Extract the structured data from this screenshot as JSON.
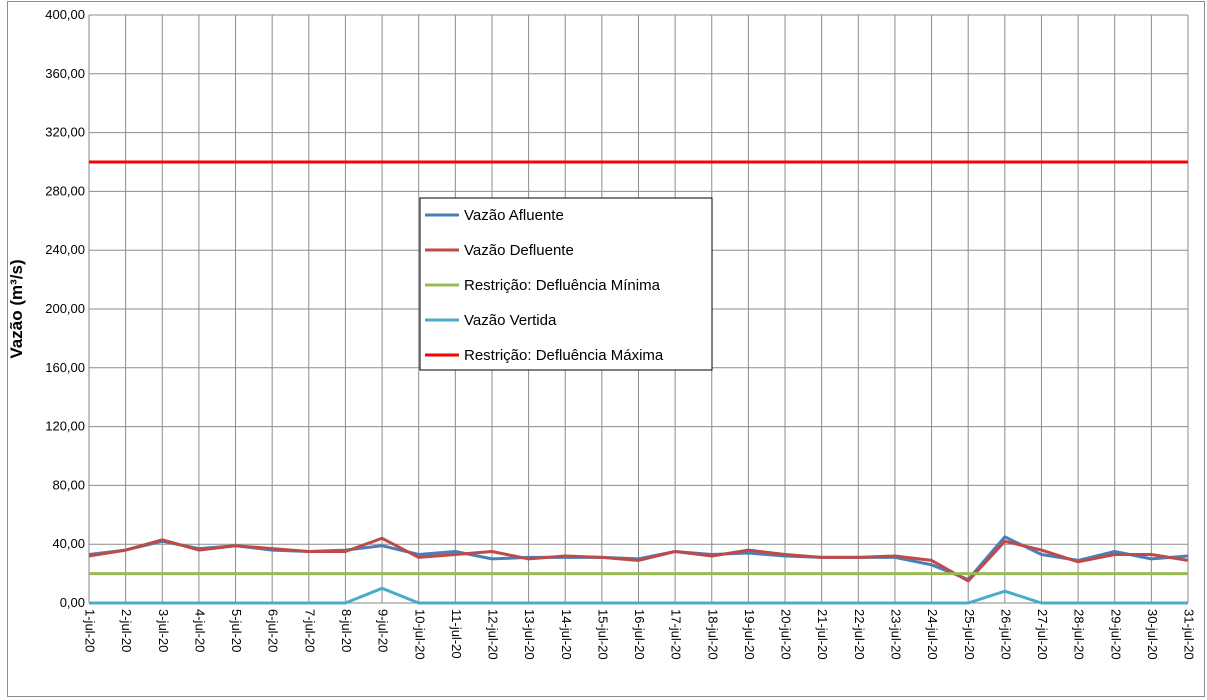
{
  "chart_data": {
    "type": "line",
    "ylabel": "Vazão (m³/s)",
    "ylim": [
      0,
      400
    ],
    "y_ticks": [
      "0,00",
      "40,00",
      "80,00",
      "120,00",
      "160,00",
      "200,00",
      "240,00",
      "280,00",
      "320,00",
      "360,00",
      "400,00"
    ],
    "grid": true,
    "legend_position": "center",
    "categories": [
      "1-jul-20",
      "2-jul-20",
      "3-jul-20",
      "4-jul-20",
      "5-jul-20",
      "6-jul-20",
      "7-jul-20",
      "8-jul-20",
      "9-jul-20",
      "10-jul-20",
      "11-jul-20",
      "12-jul-20",
      "13-jul-20",
      "14-jul-20",
      "15-jul-20",
      "16-jul-20",
      "17-jul-20",
      "18-jul-20",
      "19-jul-20",
      "20-jul-20",
      "21-jul-20",
      "22-jul-20",
      "23-jul-20",
      "24-jul-20",
      "25-jul-20",
      "26-jul-20",
      "27-jul-20",
      "28-jul-20",
      "29-jul-20",
      "30-jul-20",
      "31-jul-20"
    ],
    "series": [
      {
        "name": "Vazão Afluente",
        "color": "#4a7ebb",
        "values": [
          33,
          36,
          42,
          37,
          39,
          36,
          35,
          36,
          39,
          33,
          35,
          30,
          31,
          31,
          31,
          30,
          35,
          33,
          34,
          32,
          31,
          31,
          31,
          26,
          16,
          45,
          33,
          29,
          35,
          30,
          32
        ]
      },
      {
        "name": "Vazão Defluente",
        "color": "#be4b48",
        "values": [
          32,
          36,
          43,
          36,
          39,
          37,
          35,
          35,
          44,
          31,
          33,
          35,
          30,
          32,
          31,
          29,
          35,
          32,
          36,
          33,
          31,
          31,
          32,
          29,
          15,
          42,
          36,
          28,
          33,
          33,
          29
        ]
      },
      {
        "name": "Restrição: Defluência Mínima",
        "color": "#98b954",
        "values": [
          20,
          20,
          20,
          20,
          20,
          20,
          20,
          20,
          20,
          20,
          20,
          20,
          20,
          20,
          20,
          20,
          20,
          20,
          20,
          20,
          20,
          20,
          20,
          20,
          20,
          20,
          20,
          20,
          20,
          20,
          20
        ]
      },
      {
        "name": "Vazão Vertida",
        "color": "#4bacc6",
        "values": [
          0,
          0,
          0,
          0,
          0,
          0,
          0,
          0,
          10,
          0,
          0,
          0,
          0,
          0,
          0,
          0,
          0,
          0,
          0,
          0,
          0,
          0,
          0,
          0,
          0,
          8,
          0,
          0,
          0,
          0,
          0
        ]
      },
      {
        "name": "Restrição: Defluência Máxima",
        "color": "#ff0000",
        "values": [
          300,
          300,
          300,
          300,
          300,
          300,
          300,
          300,
          300,
          300,
          300,
          300,
          300,
          300,
          300,
          300,
          300,
          300,
          300,
          300,
          300,
          300,
          300,
          300,
          300,
          300,
          300,
          300,
          300,
          300,
          300
        ]
      }
    ]
  }
}
